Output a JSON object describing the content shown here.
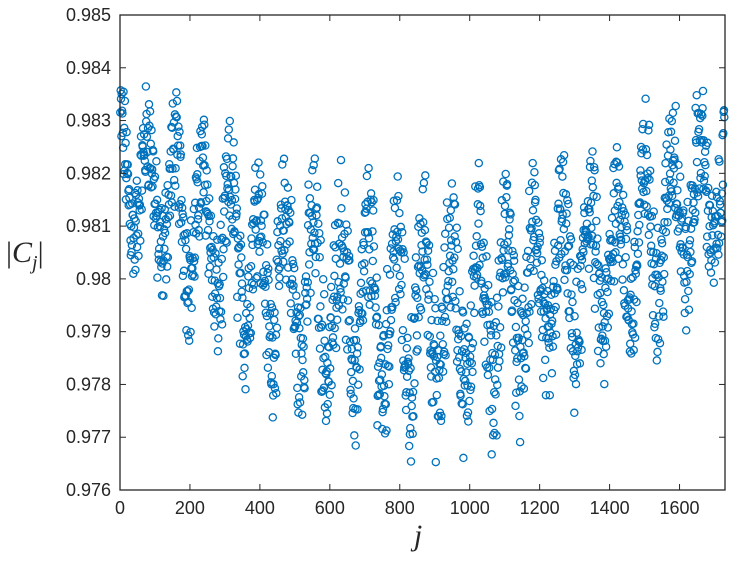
{
  "chart_data": {
    "type": "scatter",
    "title": "",
    "xlabel": "j",
    "ylabel": "|C_j|",
    "ylabel_display": "|Cj|",
    "xlim": [
      0,
      1730
    ],
    "ylim": [
      0.976,
      0.985
    ],
    "xticks": [
      "0",
      "200",
      "400",
      "600",
      "800",
      "1000",
      "1200",
      "1400",
      "1600"
    ],
    "xtick_values": [
      0,
      200,
      400,
      600,
      800,
      1000,
      1200,
      1400,
      1600
    ],
    "yticks": [
      "0.976",
      "0.977",
      "0.978",
      "0.979",
      "0.98",
      "0.981",
      "0.982",
      "0.983",
      "0.984",
      "0.985"
    ],
    "ytick_values": [
      0.976,
      0.977,
      0.978,
      0.979,
      0.98,
      0.981,
      0.982,
      0.983,
      0.984,
      0.985
    ],
    "grid": false,
    "marker": "open-circle",
    "color": "#0072BD",
    "n_points": 1728,
    "description_of_distribution": "approximate; individual points not readable",
    "envelope": {
      "x": [
        0,
        200,
        400,
        600,
        800,
        900,
        1000,
        1200,
        1400,
        1600,
        1728
      ],
      "upper": [
        0.9843,
        0.9838,
        0.9831,
        0.9827,
        0.9826,
        0.9826,
        0.9826,
        0.9828,
        0.9833,
        0.9843,
        0.984
      ],
      "lower": [
        0.9798,
        0.9785,
        0.9772,
        0.9764,
        0.9761,
        0.9761,
        0.9762,
        0.9766,
        0.9773,
        0.9784,
        0.9795
      ]
    },
    "oscillation_period": 79
  }
}
